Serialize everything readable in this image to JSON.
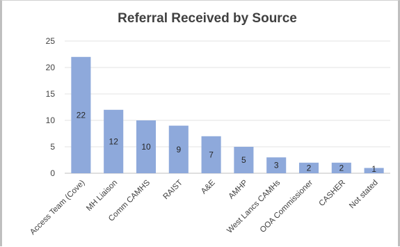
{
  "chart_data": {
    "type": "bar",
    "title": "Referral Received by Source",
    "xlabel": "",
    "ylabel": "",
    "ylim": [
      0,
      25
    ],
    "yticks": [
      0,
      5,
      10,
      15,
      20,
      25
    ],
    "grid": true,
    "legend": "none",
    "bar_color": "#8EA9DB",
    "categories": [
      "Access Team (Cove)",
      "MH Liaison",
      "Comm CAMHS",
      "RAIST",
      "A&E",
      "AMHP",
      "West Lancs CAMHs",
      "OOA Commissioner",
      "CASHER",
      "Not stated"
    ],
    "values": [
      22,
      12,
      10,
      9,
      7,
      5,
      3,
      2,
      2,
      1
    ],
    "data_labels": [
      "22",
      "12",
      "10",
      "9",
      "7",
      "5",
      "3",
      "2",
      "2",
      "1"
    ]
  }
}
